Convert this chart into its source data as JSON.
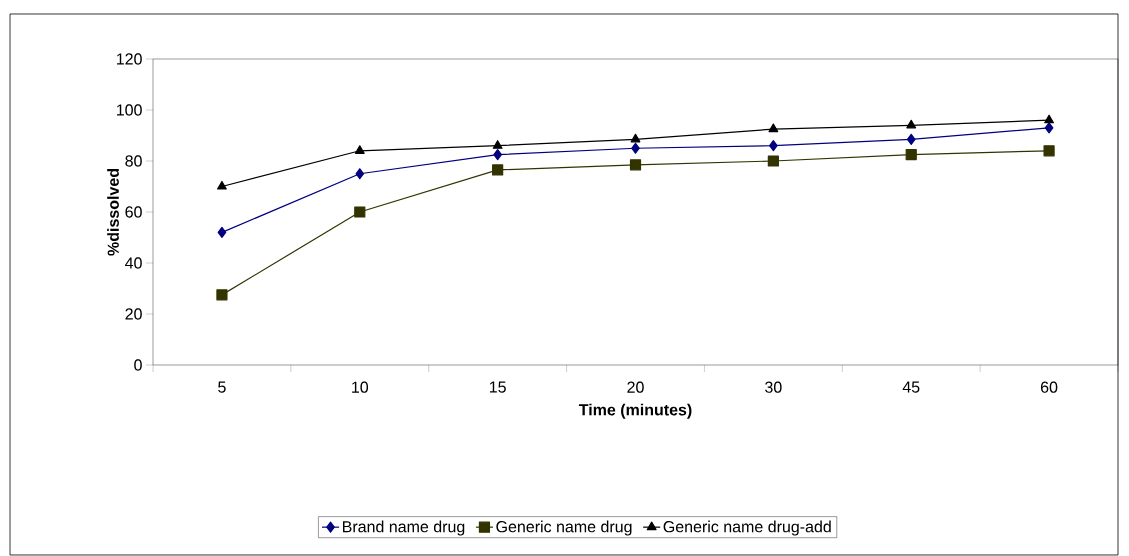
{
  "chart_data": {
    "type": "line",
    "xlabel": "Time (minutes)",
    "ylabel": "%dissolved",
    "categories": [
      "5",
      "10",
      "15",
      "20",
      "30",
      "45",
      "60"
    ],
    "ylim": [
      0,
      120
    ],
    "yticks": [
      0,
      20,
      40,
      60,
      80,
      100,
      120
    ],
    "grid": false,
    "legend": "bottom",
    "line_style": "solid",
    "series": [
      {
        "name": "Brand name drug",
        "color": "#000080",
        "marker": "diamond",
        "values": [
          52,
          75,
          82.5,
          85,
          86,
          88.5,
          93
        ]
      },
      {
        "name": "Generic name drug",
        "color": "#333300",
        "marker": "square",
        "values": [
          27.5,
          60,
          76.5,
          78.5,
          80,
          82.5,
          84
        ]
      },
      {
        "name": "Generic name drug-add",
        "color": "#000000",
        "marker": "triangle",
        "values": [
          70,
          84,
          86,
          88.5,
          92.5,
          94,
          96
        ]
      }
    ]
  }
}
